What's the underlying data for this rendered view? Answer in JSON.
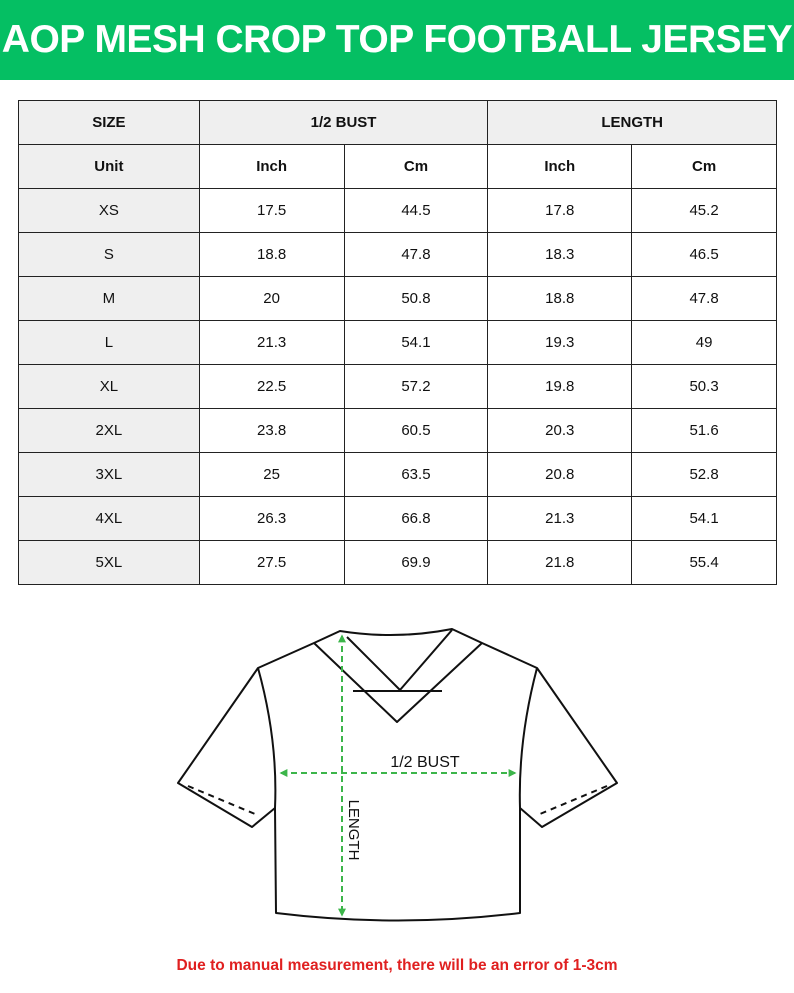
{
  "title": "AOP MESH CROP TOP FOOTBALL JERSEY",
  "table": {
    "header": {
      "size": "SIZE",
      "bust": "1/2 BUST",
      "length": "LENGTH"
    },
    "units": {
      "label": "Unit",
      "bust_inch": "Inch",
      "bust_cm": "Cm",
      "length_inch": "Inch",
      "length_cm": "Cm"
    },
    "rows": [
      [
        "XS",
        "17.5",
        "44.5",
        "17.8",
        "45.2"
      ],
      [
        "S",
        "18.8",
        "47.8",
        "18.3",
        "46.5"
      ],
      [
        "M",
        "20",
        "50.8",
        "18.8",
        "47.8"
      ],
      [
        "L",
        "21.3",
        "54.1",
        "19.3",
        "49"
      ],
      [
        "XL",
        "22.5",
        "57.2",
        "19.8",
        "50.3"
      ],
      [
        "2XL",
        "23.8",
        "60.5",
        "20.3",
        "51.6"
      ],
      [
        "3XL",
        "25",
        "63.5",
        "20.8",
        "52.8"
      ],
      [
        "4XL",
        "26.3",
        "66.8",
        "21.3",
        "54.1"
      ],
      [
        "5XL",
        "27.5",
        "69.9",
        "21.8",
        "55.4"
      ]
    ]
  },
  "diagram": {
    "bust_label": "1/2 BUST",
    "length_label": "LENGTH",
    "arrow_color": "#3cb54a"
  },
  "footer": "Due to manual measurement, there will be an error of 1-3cm"
}
